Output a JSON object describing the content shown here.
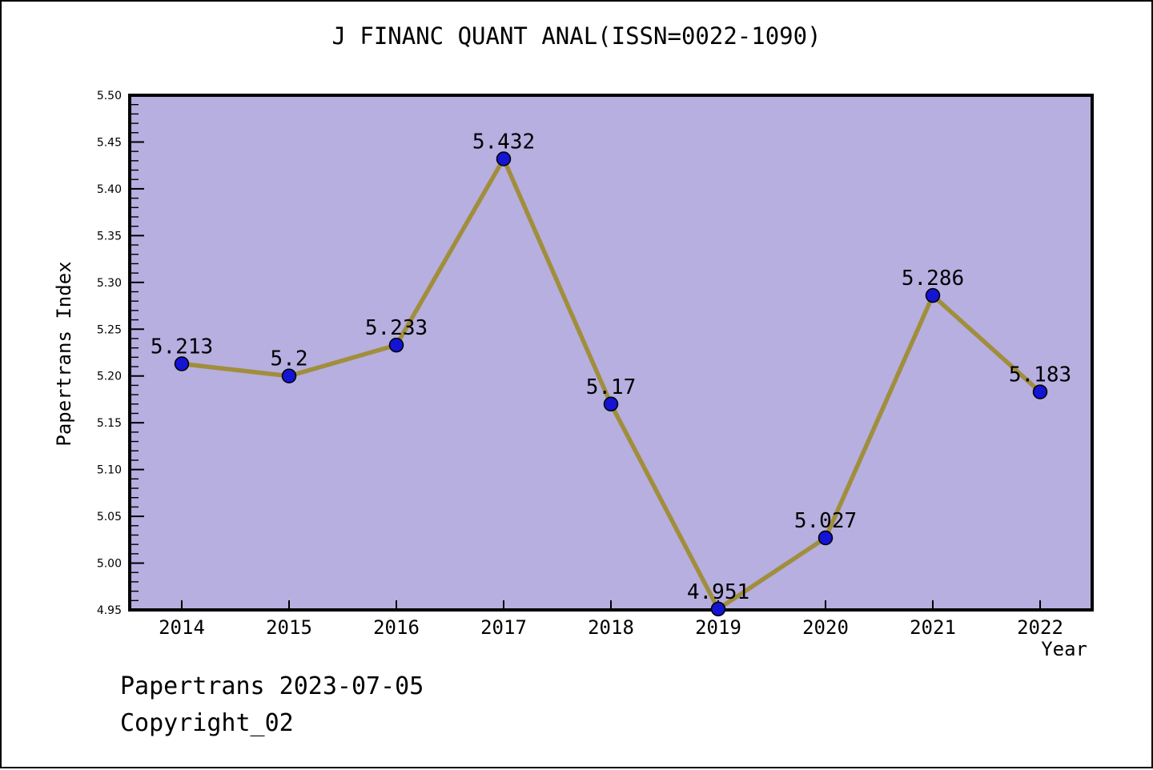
{
  "chart_data": {
    "type": "line",
    "title": "J FINANC QUANT ANAL(ISSN=0022-1090)",
    "xlabel": "Year",
    "ylabel": "Papertrans Index",
    "categories": [
      "2014",
      "2015",
      "2016",
      "2017",
      "2018",
      "2019",
      "2020",
      "2021",
      "2022"
    ],
    "values": [
      5.213,
      5.2,
      5.233,
      5.432,
      5.17,
      4.951,
      5.027,
      5.286,
      5.183
    ],
    "point_labels": [
      "5.213",
      "5.2",
      "5.233",
      "5.432",
      "5.17",
      "4.951",
      "5.027",
      "5.286",
      "5.183"
    ],
    "ylim": [
      4.95,
      5.5
    ],
    "y_major_step": 0.05,
    "y_minor_step": 0.01,
    "grid": false,
    "legend": "none",
    "colors": {
      "plot_bg": "#b6afe0",
      "line": "#a18e3c",
      "marker": "#1414d2",
      "marker_edge": "#000000",
      "axis": "#000000",
      "text": "#000000",
      "figure_bg": "#ffffff"
    }
  },
  "footer": {
    "line1": "Papertrans 2023-07-05",
    "line2": "Copyright_02"
  }
}
